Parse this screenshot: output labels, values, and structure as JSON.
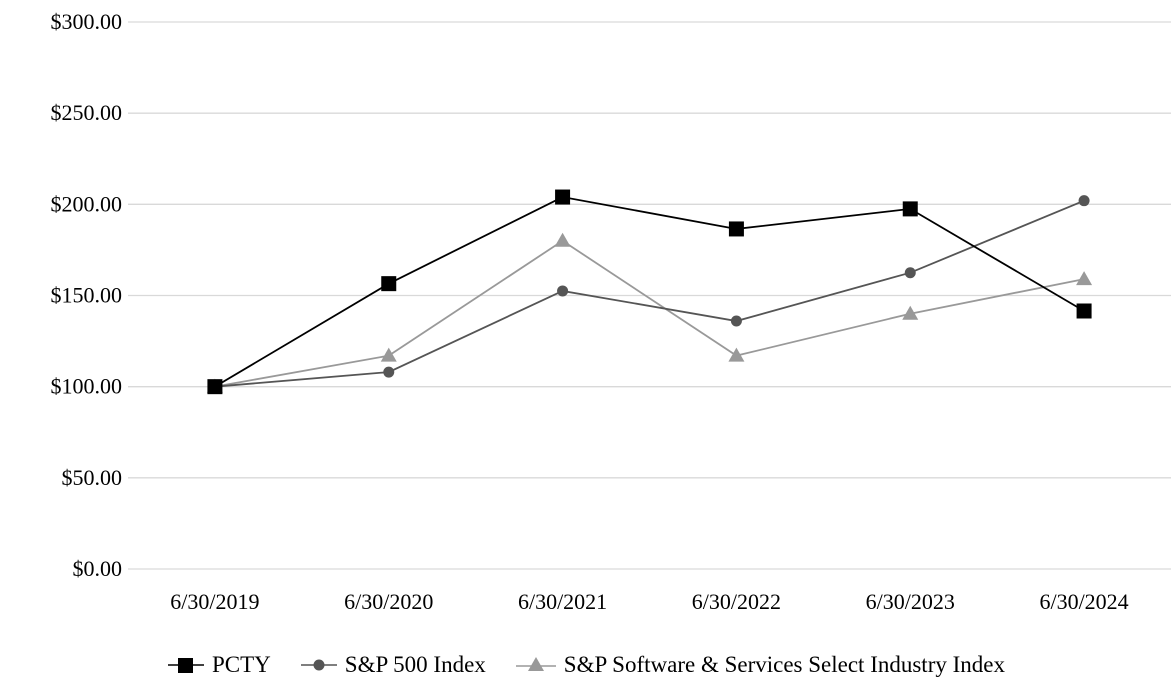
{
  "chart_data": {
    "type": "line",
    "categories": [
      "6/30/2019",
      "6/30/2020",
      "6/30/2021",
      "6/30/2022",
      "6/30/2023",
      "6/30/2024"
    ],
    "ylim": [
      0,
      300
    ],
    "y_ticks": [
      "$0.00",
      "$50.00",
      "$100.00",
      "$150.00",
      "$200.00",
      "$250.00",
      "$300.00"
    ],
    "y_tick_values": [
      0,
      50,
      100,
      150,
      200,
      250,
      300
    ],
    "grid": true,
    "legend_position": "bottom",
    "series": [
      {
        "name": "PCTY",
        "marker": "square",
        "color": "#000000",
        "values": [
          100,
          156.5,
          204,
          186.5,
          197.5,
          141.5
        ]
      },
      {
        "name": "S&P 500 Index",
        "marker": "circle",
        "color": "#555555",
        "values": [
          100,
          108,
          152.5,
          136,
          162.5,
          202
        ]
      },
      {
        "name": "S&P Software & Services Select Industry Index",
        "marker": "triangle",
        "color": "#999999",
        "values": [
          100,
          117,
          180,
          117,
          140,
          159
        ]
      }
    ]
  }
}
